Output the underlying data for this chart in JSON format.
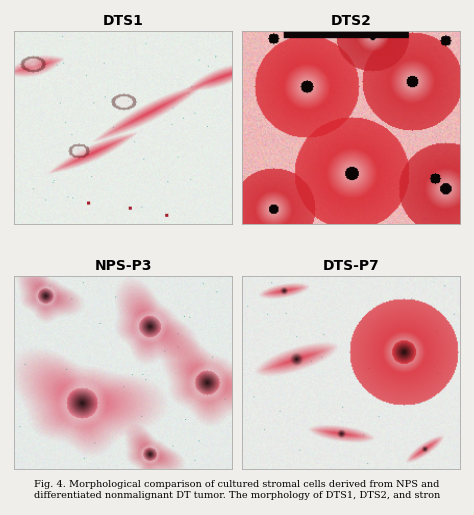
{
  "figure_bg": "#f0eeeb",
  "labels": [
    "DTS1",
    "DTS2",
    "NPS-P3",
    "DTS-P7"
  ],
  "label_fontsize": 10,
  "label_fontweight": "bold",
  "caption_line1": "Fig. 4. Morphological comparison of cultured stromal cells derived from NPS and",
  "caption_line2": "differentiated nonmalignant DT tumor. The morphology of DTS1, DTS2, and stron",
  "caption_fontsize": 7.0,
  "fig_width": 4.74,
  "fig_height": 5.15
}
